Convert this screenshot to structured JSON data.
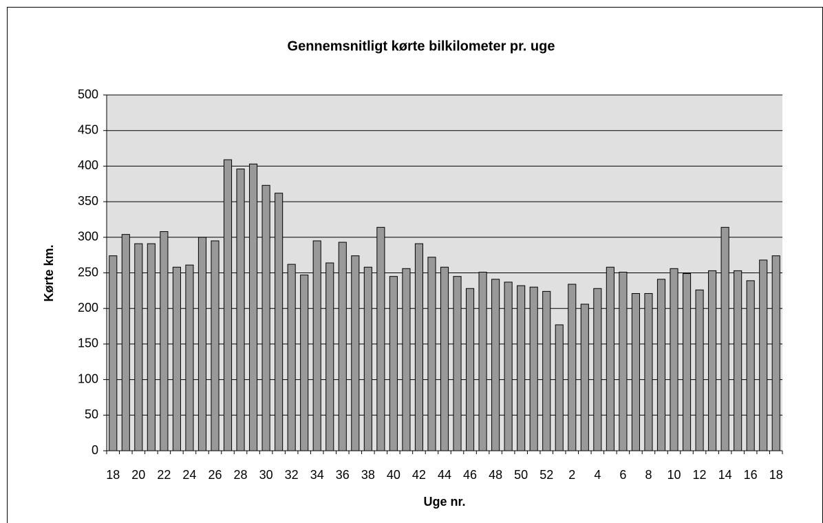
{
  "chart_data": {
    "type": "bar",
    "title": "Gennemsnitligt kørte bilkilometer pr. uge",
    "x_label": "Uge nr.",
    "y_label": "Kørte km.",
    "categories": [
      "18",
      null,
      "20",
      null,
      "22",
      null,
      "24",
      null,
      "26",
      null,
      "28",
      null,
      "30",
      null,
      "32",
      null,
      "34",
      null,
      "36",
      null,
      "38",
      null,
      "40",
      null,
      "42",
      null,
      "44",
      null,
      "46",
      null,
      "48",
      null,
      "50",
      null,
      "52",
      null,
      "2",
      null,
      "4",
      null,
      "6",
      null,
      "8",
      null,
      "10",
      null,
      "12",
      null,
      "14",
      null,
      "16",
      null,
      "18"
    ],
    "values": [
      274,
      304,
      291,
      291,
      308,
      258,
      261,
      300,
      295,
      409,
      396,
      403,
      373,
      362,
      262,
      247,
      295,
      264,
      293,
      274,
      258,
      314,
      245,
      256,
      291,
      272,
      258,
      245,
      228,
      251,
      241,
      237,
      232,
      230,
      224,
      177,
      234,
      206,
      228,
      258,
      251,
      221,
      221,
      241,
      256,
      249,
      226,
      253,
      314,
      253,
      239,
      268,
      274
    ],
    "color": "#999999",
    "ylim": [
      0,
      500
    ],
    "yticks": [
      0,
      50,
      100,
      150,
      200,
      250,
      300,
      350,
      400,
      450,
      500
    ],
    "grid": true
  }
}
